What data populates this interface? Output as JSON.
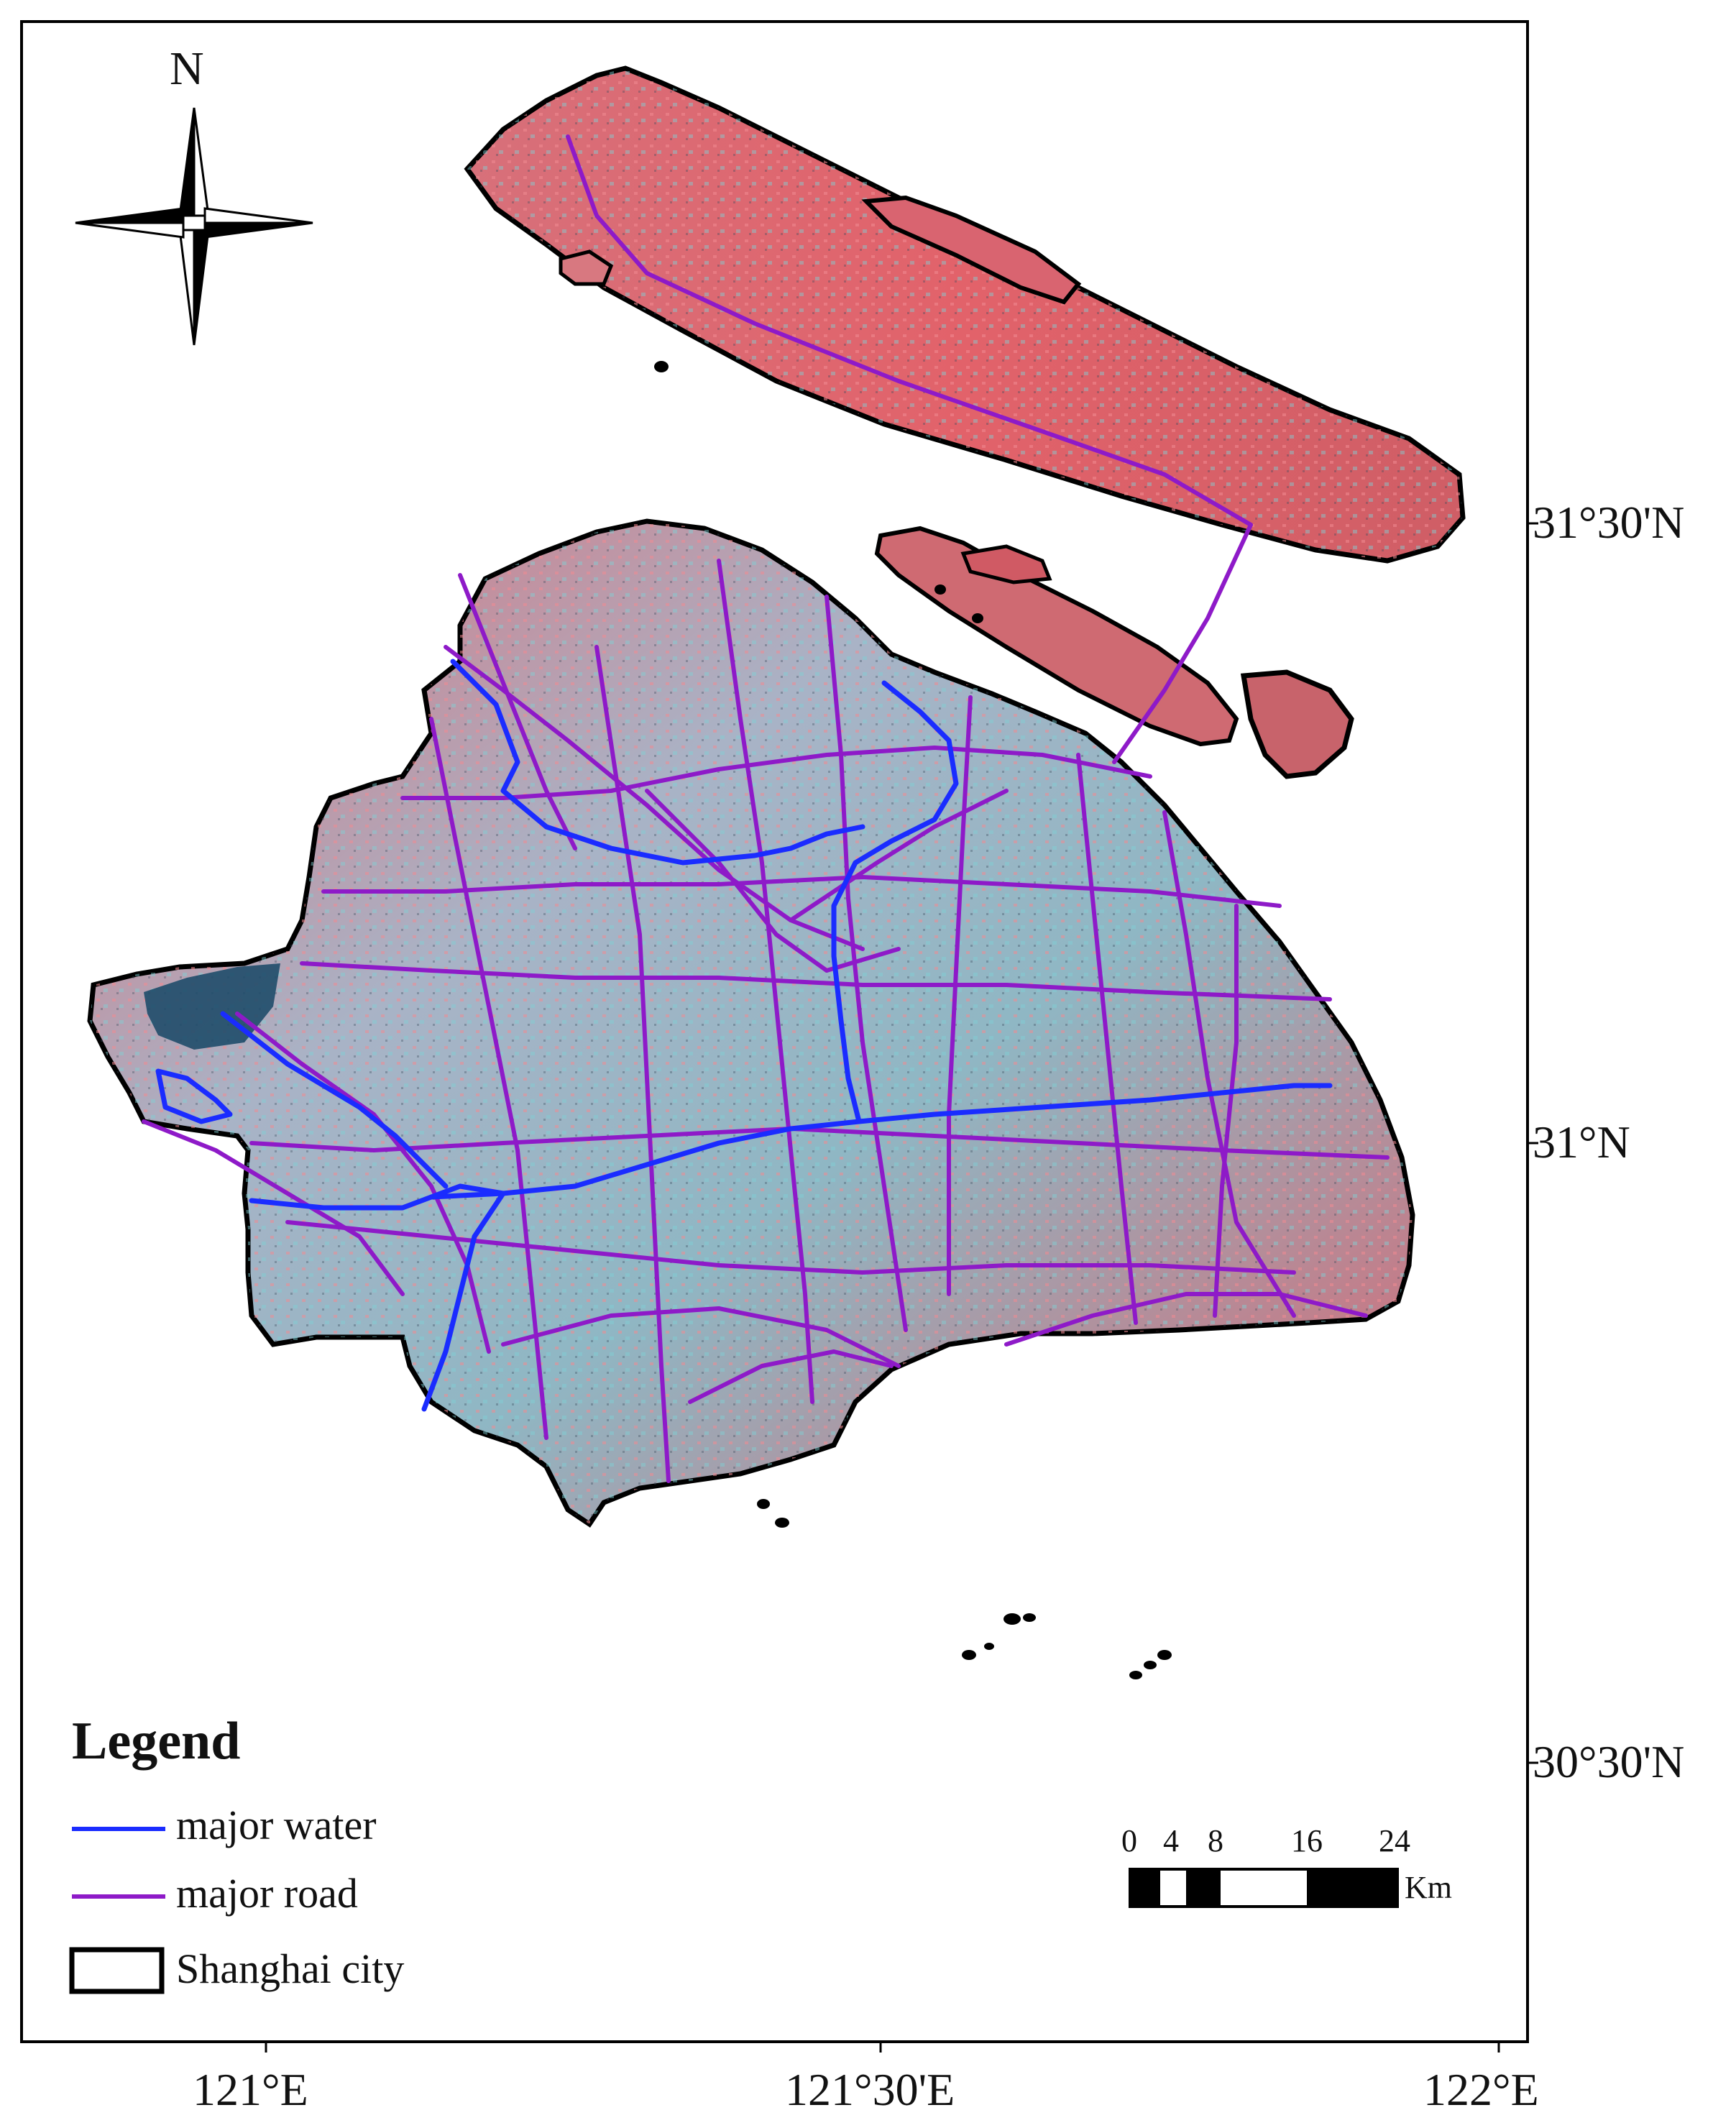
{
  "map": {
    "compass": {
      "label": "N"
    },
    "longitude_ticks": [
      "121°E",
      "121°30'E",
      "122°E"
    ],
    "latitude_ticks": [
      "31°30'N",
      "31°N",
      "30°30'N"
    ],
    "legend": {
      "title": "Legend",
      "items": [
        {
          "label": "major water",
          "symbol": "line",
          "color": "#1a2cff"
        },
        {
          "label": "major road",
          "symbol": "line",
          "color": "#8e1ac8"
        },
        {
          "label": "Shanghai city",
          "symbol": "box",
          "color": "#000000"
        }
      ]
    },
    "scale_bar": {
      "labels": [
        "0",
        "4",
        "8",
        "16",
        "24"
      ],
      "unit": "Km"
    },
    "colors": {
      "land_red": "#e45a62",
      "land_cyan": "#9dc4c8",
      "lake": "#1f4c6a",
      "water": "#1a2cff",
      "road": "#8e1ac8",
      "boundary": "#000000"
    }
  }
}
